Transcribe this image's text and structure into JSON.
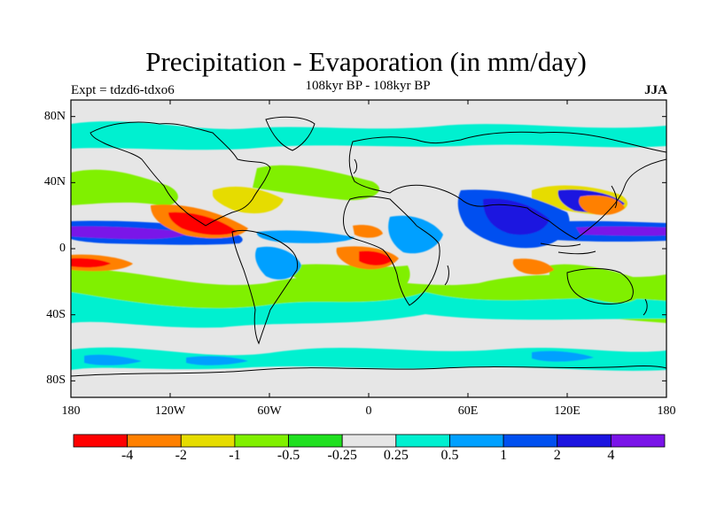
{
  "figure": {
    "title": "Precipitation - Evaporation (in mm/day)",
    "subtitle": "108kyr BP - 108kyr BP",
    "left_label": "Expt = tdzd6-tdxo6",
    "right_label": "JJA"
  },
  "map": {
    "projection": "cylindrical-equidistant",
    "lon_range": [
      -180,
      180
    ],
    "lat_range": [
      -90,
      90
    ],
    "ocean_land_background": "#e6e6e6",
    "coastlines": "black",
    "x_ticks": [
      {
        "lon": -180,
        "label": "180"
      },
      {
        "lon": -120,
        "label": "120W"
      },
      {
        "lon": -60,
        "label": "60W"
      },
      {
        "lon": 0,
        "label": "0"
      },
      {
        "lon": 60,
        "label": "60E"
      },
      {
        "lon": 120,
        "label": "120E"
      },
      {
        "lon": 180,
        "label": "180"
      }
    ],
    "y_ticks": [
      {
        "lat": 80,
        "label": "80N"
      },
      {
        "lat": 40,
        "label": "40N"
      },
      {
        "lat": 0,
        "label": "0"
      },
      {
        "lat": -40,
        "label": "40S"
      },
      {
        "lat": -80,
        "label": "80S"
      }
    ]
  },
  "colorbar": {
    "colors": [
      "#ff0000",
      "#ff8000",
      "#e6dc00",
      "#80f000",
      "#20e020",
      "#e6e6e6",
      "#00f0d0",
      "#00a0ff",
      "#0050f0",
      "#1c14e0",
      "#7a14e8"
    ],
    "labels": [
      "-4",
      "-2",
      "-1",
      "-0.5",
      "-0.25",
      "0.25",
      "0.5",
      "1",
      "2",
      "4"
    ]
  }
}
